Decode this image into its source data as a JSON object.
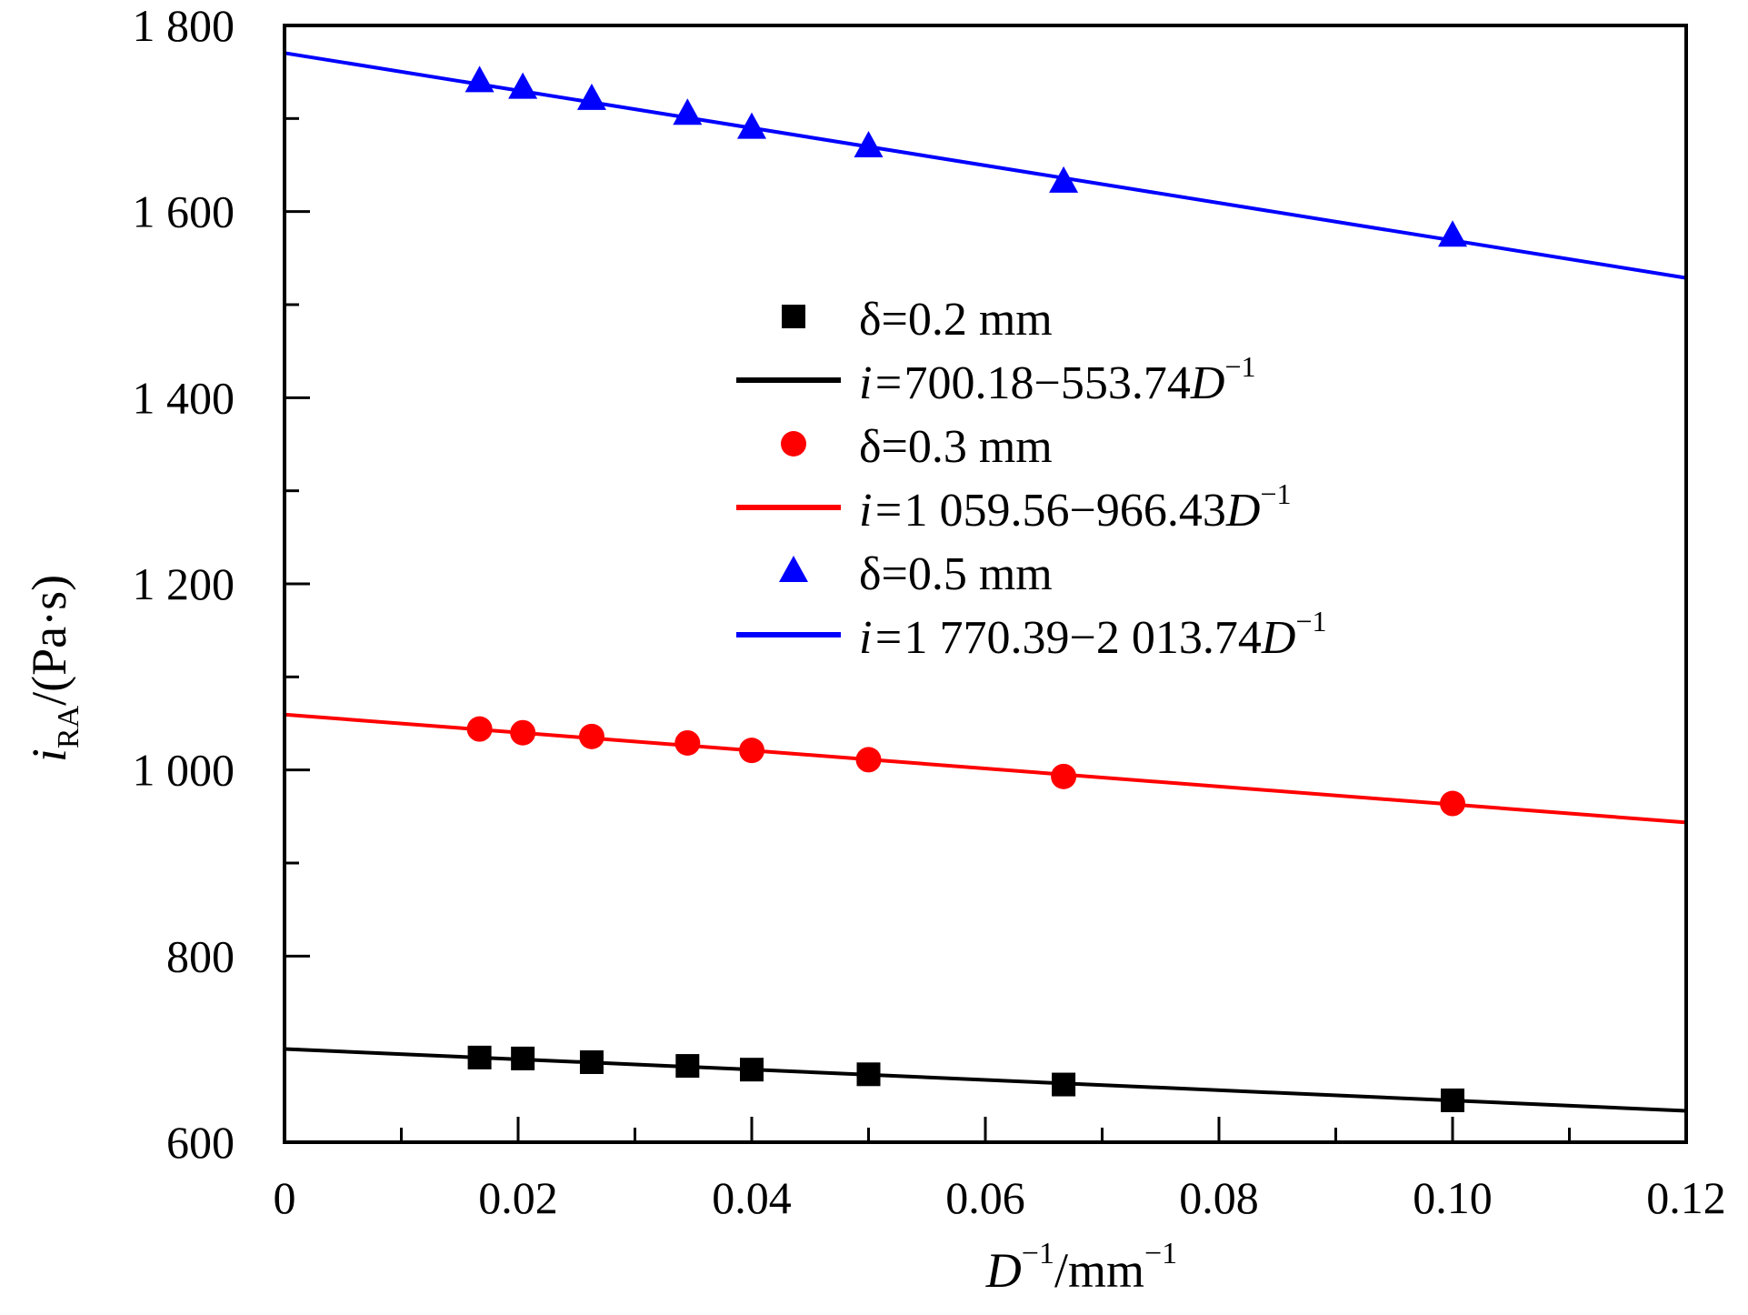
{
  "chart_data": {
    "type": "scatter",
    "xlabel": {
      "base": "D",
      "sup1": "−1",
      "unit": "/mm",
      "sup2": "−1"
    },
    "ylabel": {
      "base": "i",
      "sub": "RA",
      "unit": "/(Pa·s)"
    },
    "xlim": [
      0,
      0.12
    ],
    "ylim": [
      600,
      1800
    ],
    "x_ticks": [
      0,
      0.02,
      0.04,
      0.06,
      0.08,
      0.1,
      0.12
    ],
    "x_tick_labels": [
      "0",
      "0.02",
      "0.04",
      "0.06",
      "0.08",
      "0.10",
      "0.12"
    ],
    "y_ticks": [
      600,
      800,
      1000,
      1200,
      1400,
      1600,
      1800
    ],
    "y_tick_labels": [
      "600",
      "800",
      "1 000",
      "1 200",
      "1 400",
      "1 600",
      "1 800"
    ],
    "x": [
      0.0167,
      0.0204,
      0.0263,
      0.0345,
      0.04,
      0.05,
      0.0667,
      0.1
    ],
    "legend_position": "center",
    "series": [
      {
        "name": "δ=0.2 mm",
        "marker": "square",
        "color": "#000000",
        "values": [
          691,
          690,
          686,
          682,
          678,
          673,
          662,
          645
        ],
        "fit": {
          "intercept": 700.18,
          "slope": -553.74,
          "label": {
            "prefix": "i=",
            "body": "700.18−553.74",
            "var": "D",
            "sup": "−1"
          }
        }
      },
      {
        "name": "δ=0.3 mm",
        "marker": "circle",
        "color": "#ff0000",
        "values": [
          1044,
          1040,
          1036,
          1029,
          1021,
          1011,
          993,
          964
        ],
        "fit": {
          "intercept": 1059.56,
          "slope": -966.43,
          "label": {
            "prefix": "i=",
            "body": "1 059.56−966.43",
            "var": "D",
            "sup": "−1"
          }
        }
      },
      {
        "name": "δ=0.5 mm",
        "marker": "triangle",
        "color": "#0000ff",
        "values": [
          1740,
          1733,
          1721,
          1705,
          1690,
          1670,
          1632,
          1574
        ],
        "fit": {
          "intercept": 1770.39,
          "slope": -2013.74,
          "label": {
            "prefix": "i=",
            "body": "1 770.39−2 013.74",
            "var": "D",
            "sup": "−1"
          }
        }
      }
    ]
  }
}
